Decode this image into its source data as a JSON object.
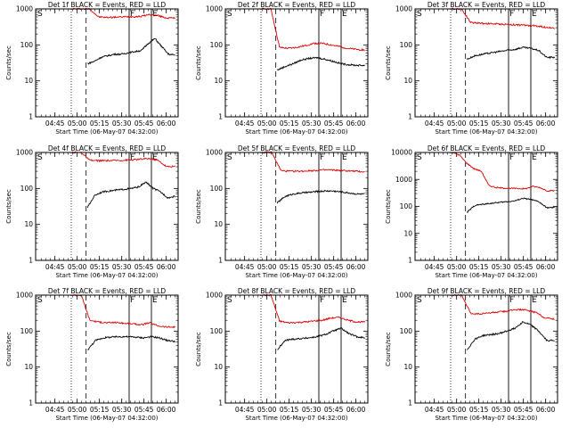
{
  "chart_data": [
    {
      "type": "line",
      "title": "Det 1f BLACK = Events, RED = LLD",
      "xlabel": "Start Time (06-May-07 04:32:00)",
      "ylabel": "Counts/sec",
      "yscale": "log",
      "ylim": [
        1,
        1000
      ],
      "xticks": [
        "04:45",
        "05:00",
        "05:15",
        "05:30",
        "05:45",
        "06:00"
      ],
      "yticks": [
        "1",
        "10",
        "100",
        "1000"
      ],
      "markers": {
        "S": "S",
        "F": "F",
        "E": "E"
      },
      "series": [
        {
          "color": "#dd0000",
          "values": [
            1000,
            1000,
            1000,
            600,
            580,
            590,
            600,
            610,
            620,
            700,
            650,
            560,
            560
          ]
        },
        {
          "color": "#000000",
          "values": [
            30,
            35,
            45,
            50,
            55,
            55,
            60,
            65,
            70,
            110,
            150,
            90,
            55,
            52
          ]
        }
      ]
    },
    {
      "type": "line",
      "title": "Det 2f BLACK = Events, RED = LLD",
      "xlabel": "Start Time (06-May-07 04:32:00)",
      "ylabel": "Counts/sec",
      "yscale": "log",
      "ylim": [
        1,
        1000
      ],
      "xticks": [
        "04:45",
        "05:00",
        "05:15",
        "05:30",
        "05:45",
        "06:00"
      ],
      "yticks": [
        "1",
        "10",
        "100",
        "1000"
      ],
      "markers": {
        "S": "S",
        "F": "F",
        "E": "E"
      },
      "series": [
        {
          "color": "#dd0000",
          "values": [
            1000,
            1000,
            85,
            80,
            85,
            95,
            110,
            110,
            100,
            90,
            80,
            75,
            72
          ]
        },
        {
          "color": "#000000",
          "values": [
            20,
            25,
            30,
            38,
            42,
            44,
            40,
            35,
            30,
            28,
            27,
            27
          ]
        }
      ]
    },
    {
      "type": "line",
      "title": "Det 3f BLACK = Events, RED = LLD",
      "xlabel": "Start Time (06-May-07 04:32:00)",
      "ylabel": "Counts/sec",
      "yscale": "log",
      "ylim": [
        1,
        1000
      ],
      "xticks": [
        "04:45",
        "05:00",
        "05:15",
        "05:30",
        "05:45",
        "06:00"
      ],
      "yticks": [
        "1",
        "10",
        "100",
        "1000"
      ],
      "markers": {
        "S": "S",
        "F": "F",
        "E": "E"
      },
      "series": [
        {
          "color": "#dd0000",
          "values": [
            1000,
            1000,
            420,
            400,
            390,
            380,
            370,
            360,
            350,
            340,
            310,
            290
          ]
        },
        {
          "color": "#000000",
          "values": [
            40,
            50,
            55,
            60,
            65,
            70,
            75,
            85,
            80,
            70,
            45,
            45
          ]
        }
      ]
    },
    {
      "type": "line",
      "title": "Det 4f BLACK = Events, RED = LLD",
      "xlabel": "Start Time (06-May-07 04:32:00)",
      "ylabel": "Counts/sec",
      "yscale": "log",
      "ylim": [
        1,
        1000
      ],
      "xticks": [
        "04:45",
        "05:00",
        "05:15",
        "05:30",
        "05:45",
        "06:00"
      ],
      "yticks": [
        "1",
        "10",
        "100",
        "1000"
      ],
      "markers": {
        "S": "S",
        "F": "F",
        "E": "E"
      },
      "series": [
        {
          "color": "#dd0000",
          "values": [
            1000,
            1000,
            600,
            590,
            590,
            600,
            610,
            620,
            650,
            680,
            600,
            400,
            410
          ]
        },
        {
          "color": "#000000",
          "values": [
            30,
            65,
            80,
            85,
            90,
            95,
            100,
            110,
            150,
            100,
            80,
            55,
            60
          ]
        }
      ]
    },
    {
      "type": "line",
      "title": "Det 5f BLACK = Events, RED = LLD",
      "xlabel": "Start Time (06-May-07 04:32:00)",
      "ylabel": "Counts/sec",
      "yscale": "log",
      "ylim": [
        1,
        1000
      ],
      "xticks": [
        "04:45",
        "05:00",
        "05:15",
        "05:30",
        "05:45",
        "06:00"
      ],
      "yticks": [
        "1",
        "10",
        "100",
        "1000"
      ],
      "markers": {
        "S": "S",
        "F": "F",
        "E": "E"
      },
      "series": [
        {
          "color": "#dd0000",
          "values": [
            1000,
            1000,
            310,
            300,
            300,
            310,
            320,
            330,
            320,
            310,
            300,
            290
          ]
        },
        {
          "color": "#000000",
          "values": [
            40,
            60,
            70,
            75,
            78,
            82,
            85,
            85,
            80,
            75,
            70,
            70
          ]
        }
      ]
    },
    {
      "type": "line",
      "title": "Det 6f BLACK = Events, RED = LLD",
      "xlabel": "Start Time (06-May-07 04:32:00)",
      "ylabel": "Counts/sec",
      "yscale": "log",
      "ylim": [
        1,
        10000
      ],
      "xticks": [
        "04:45",
        "05:00",
        "05:15",
        "05:30",
        "05:45",
        "06:00"
      ],
      "yticks": [
        "1",
        "10",
        "100",
        "1000",
        "10000"
      ],
      "markers": {
        "S": "S",
        "F": "F",
        "E": "E"
      },
      "series": [
        {
          "color": "#dd0000",
          "values": [
            10000,
            8000,
            4000,
            2500,
            2000,
            600,
            500,
            480,
            470,
            460,
            450,
            550,
            500,
            380,
            380
          ]
        },
        {
          "color": "#000000",
          "values": [
            60,
            110,
            120,
            130,
            140,
            150,
            160,
            200,
            180,
            150,
            90,
            90
          ]
        }
      ]
    },
    {
      "type": "line",
      "title": "Det 7f BLACK = Events, RED = LLD",
      "xlabel": "Start Time (06-May-07 04:32:00)",
      "ylabel": "Counts/sec",
      "yscale": "log",
      "ylim": [
        1,
        1000
      ],
      "xticks": [
        "04:45",
        "05:00",
        "05:15",
        "05:30",
        "05:45",
        "06:00"
      ],
      "yticks": [
        "1",
        "10",
        "100",
        "1000"
      ],
      "markers": {
        "S": "S",
        "F": "F",
        "E": "E"
      },
      "series": [
        {
          "color": "#dd0000",
          "values": [
            1000,
            1000,
            200,
            180,
            170,
            175,
            165,
            160,
            150,
            170,
            140,
            130,
            130
          ]
        },
        {
          "color": "#000000",
          "values": [
            30,
            55,
            65,
            68,
            70,
            70,
            68,
            65,
            70,
            65,
            55,
            52
          ]
        }
      ]
    },
    {
      "type": "line",
      "title": "Det 8f BLACK = Events, RED = LLD",
      "xlabel": "Start Time (06-May-07 04:32:00)",
      "ylabel": "Counts/sec",
      "yscale": "log",
      "ylim": [
        1,
        1000
      ],
      "xticks": [
        "04:45",
        "05:00",
        "05:15",
        "05:30",
        "05:45",
        "06:00"
      ],
      "yticks": [
        "1",
        "10",
        "100",
        "1000"
      ],
      "markers": {
        "S": "S",
        "F": "F",
        "E": "E"
      },
      "series": [
        {
          "color": "#dd0000",
          "values": [
            1000,
            1000,
            190,
            170,
            175,
            180,
            190,
            200,
            230,
            240,
            200,
            180,
            180
          ]
        },
        {
          "color": "#000000",
          "values": [
            30,
            55,
            60,
            62,
            65,
            70,
            80,
            100,
            120,
            85,
            70,
            65
          ]
        }
      ]
    },
    {
      "type": "line",
      "title": "Det 9f BLACK = Events, RED = LLD",
      "xlabel": "Start Time (06-May-07 04:32:00)",
      "ylabel": "Counts/sec",
      "yscale": "log",
      "ylim": [
        1,
        1000
      ],
      "xticks": [
        "04:45",
        "05:00",
        "05:15",
        "05:30",
        "05:45",
        "06:00"
      ],
      "yticks": [
        "1",
        "10",
        "100",
        "1000"
      ],
      "markers": {
        "S": "S",
        "F": "F",
        "E": "E"
      },
      "series": [
        {
          "color": "#dd0000",
          "values": [
            1000,
            1000,
            310,
            300,
            320,
            340,
            360,
            400,
            380,
            330,
            230,
            220
          ]
        },
        {
          "color": "#000000",
          "values": [
            30,
            60,
            75,
            80,
            85,
            100,
            120,
            180,
            150,
            100,
            55,
            55
          ]
        }
      ]
    }
  ]
}
